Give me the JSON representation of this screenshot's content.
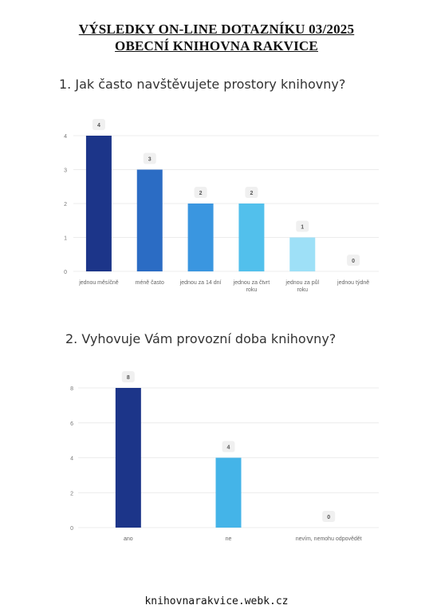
{
  "header": {
    "title_line1": "VÝSLEDKY ON-LINE DOTAZNÍKU 03/2025",
    "title_line2": "OBECNÍ KNIHOVNA RAKVICE"
  },
  "questions": [
    {
      "title": "1. Jak často navštěvujete prostory knihovny?"
    },
    {
      "title": "2. Vyhovuje Vám provozní doba knihovny?"
    }
  ],
  "chart_data": [
    {
      "type": "bar",
      "title": "1. Jak často navštěvujete prostory knihovny?",
      "categories": [
        "jednou měsíčně",
        "méně často",
        "jednou za 14 dní",
        "jednou za čtvrt roku",
        "jednou za půl roku",
        "jednou týdně"
      ],
      "values": [
        4,
        3,
        2,
        2,
        1,
        0
      ],
      "colors": [
        "#1c3589",
        "#2b6cc4",
        "#3a96e0",
        "#52c0ec",
        "#9ee0f7",
        "#d0eef9"
      ],
      "yticks": [
        0,
        1,
        2,
        3,
        4
      ],
      "ylim": [
        0,
        4
      ],
      "grid": true,
      "legend": "none",
      "xlabel": "",
      "ylabel": ""
    },
    {
      "type": "bar",
      "title": "2. Vyhovuje Vám provozní doba knihovny?",
      "categories": [
        "ano",
        "ne",
        "nevím, nemohu odpovědět"
      ],
      "values": [
        8,
        4,
        0
      ],
      "colors": [
        "#1c3589",
        "#44b4e8",
        "#a0d8f0"
      ],
      "yticks": [
        0,
        2,
        4,
        6,
        8
      ],
      "ylim": [
        0,
        8
      ],
      "grid": true,
      "legend": "none",
      "xlabel": "",
      "ylabel": ""
    }
  ],
  "footer": {
    "url": "knihovnarakvice.webk.cz"
  }
}
